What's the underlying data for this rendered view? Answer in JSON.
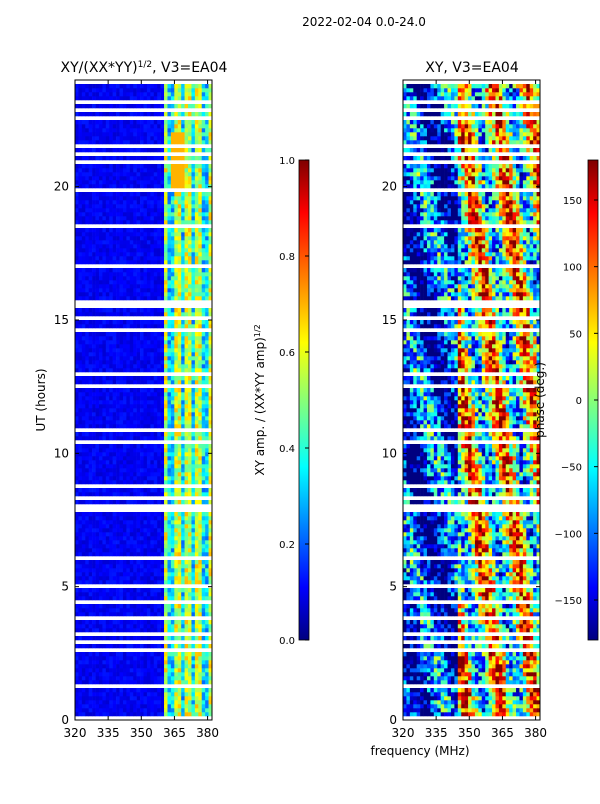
{
  "suptitle": "2022-02-04 0.0-24.0",
  "xlabel": "frequency (MHz)",
  "chart_data": [
    {
      "type": "heatmap",
      "title": "XY/(XX*YY)",
      "title_sup": "1/2",
      "title_suffix": ", V3=EA04",
      "ylabel": "UT (hours)",
      "x_ticks": [
        320,
        335,
        350,
        365,
        380
      ],
      "y_ticks": [
        0,
        5,
        10,
        15,
        20
      ],
      "xlim": [
        320,
        382
      ],
      "ylim": [
        0,
        24
      ],
      "colorbar": {
        "label": "XY amp. / (XX*YY amp)",
        "label_sup": "1/2",
        "range": [
          0.0,
          1.0
        ],
        "ticks": [
          "0.0",
          "0.2",
          "0.4",
          "0.6",
          "0.8",
          "1.0"
        ]
      }
    },
    {
      "type": "heatmap",
      "title": "XY, V3=EA04",
      "ylabel": "",
      "x_ticks": [
        320,
        335,
        350,
        365,
        380
      ],
      "y_ticks": [
        0,
        5,
        10,
        15,
        20
      ],
      "xlim": [
        320,
        382
      ],
      "ylim": [
        0,
        24
      ],
      "colorbar": {
        "label": "phase (deg.)",
        "range": [
          -180,
          180
        ],
        "ticks": [
          "150",
          "100",
          "50",
          "0",
          "−50",
          "−100",
          "−150"
        ]
      }
    }
  ]
}
